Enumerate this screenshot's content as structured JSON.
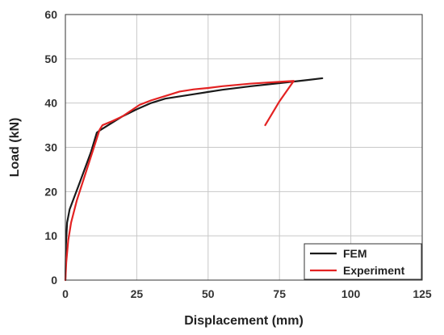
{
  "chart_data": {
    "type": "line",
    "title": "",
    "xlabel": "Displacement (mm)",
    "ylabel": "Load (kN)",
    "xlim": [
      0,
      125
    ],
    "ylim": [
      0,
      60
    ],
    "xticks": [
      0,
      25,
      50,
      75,
      100,
      125
    ],
    "yticks": [
      0,
      10,
      20,
      30,
      40,
      50,
      60
    ],
    "grid": true,
    "legend_position": "bottom-right",
    "series": [
      {
        "name": "FEM",
        "color": "#1a1a1a",
        "points": [
          [
            0,
            0
          ],
          [
            0.2,
            8
          ],
          [
            0.6,
            13
          ],
          [
            1.5,
            16
          ],
          [
            5,
            22
          ],
          [
            9,
            29
          ],
          [
            11,
            33.3
          ],
          [
            12,
            33.8
          ],
          [
            15,
            35
          ],
          [
            20,
            37
          ],
          [
            25,
            38.6
          ],
          [
            30,
            40
          ],
          [
            35,
            41
          ],
          [
            45,
            42
          ],
          [
            55,
            43
          ],
          [
            65,
            43.8
          ],
          [
            75,
            44.5
          ],
          [
            82,
            45
          ],
          [
            90,
            45.6
          ]
        ]
      },
      {
        "name": "Experiment",
        "color": "#e32222",
        "points": [
          [
            0,
            0
          ],
          [
            0.3,
            4
          ],
          [
            1,
            9
          ],
          [
            2,
            13
          ],
          [
            4,
            18
          ],
          [
            7,
            24
          ],
          [
            10,
            30
          ],
          [
            12,
            34
          ],
          [
            13,
            35
          ],
          [
            16,
            35.8
          ],
          [
            20,
            37
          ],
          [
            23,
            38.3
          ],
          [
            26,
            39.6
          ],
          [
            30,
            40.6
          ],
          [
            35,
            41.6
          ],
          [
            40,
            42.6
          ],
          [
            45,
            43.1
          ],
          [
            50,
            43.4
          ],
          [
            55,
            43.8
          ],
          [
            60,
            44.1
          ],
          [
            65,
            44.4
          ],
          [
            70,
            44.6
          ],
          [
            75,
            44.8
          ],
          [
            80,
            45
          ],
          [
            75,
            40.4
          ],
          [
            70,
            35
          ]
        ]
      }
    ]
  }
}
